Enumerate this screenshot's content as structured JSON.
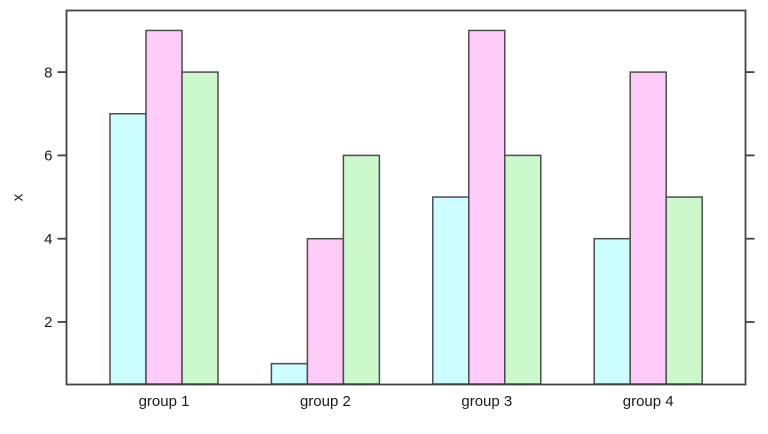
{
  "chart_data": {
    "type": "bar",
    "title": "",
    "xlabel": "",
    "ylabel": "x",
    "categories": [
      "group 1",
      "group 2",
      "group 3",
      "group 4"
    ],
    "series": [
      {
        "color": "#CCFEFF",
        "values": [
          7,
          1,
          5,
          4
        ]
      },
      {
        "color": "#FFCCFA",
        "values": [
          9,
          4,
          9,
          8
        ]
      },
      {
        "color": "#CCF9CC",
        "values": [
          8,
          6,
          6,
          5
        ]
      }
    ],
    "yticks": [
      2,
      4,
      6,
      8
    ],
    "ylim": [
      0.5,
      9.5
    ],
    "grid": false,
    "legend_position": "none",
    "colors": {
      "bar_border": "#4D4D4D",
      "axis": "#434343",
      "text": "#1A1A1A",
      "background": "#FFFFFF"
    }
  }
}
